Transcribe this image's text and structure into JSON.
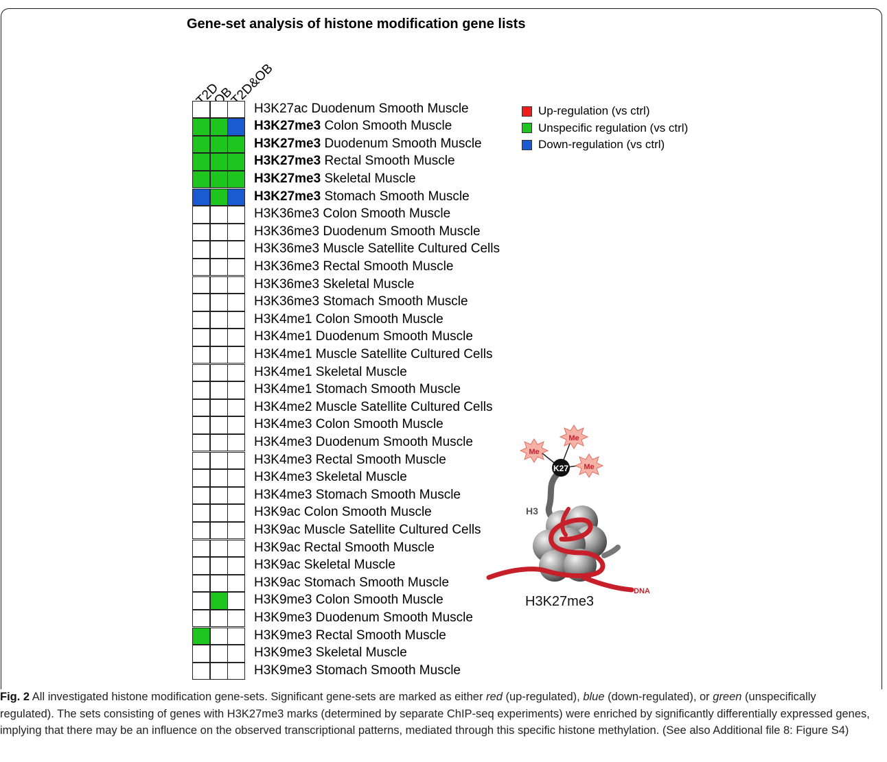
{
  "figure": {
    "title": "Gene-set analysis of histone modification gene lists",
    "columns": [
      "T2D",
      "OB",
      "T2D&OB"
    ],
    "colors": {
      "up": "#ee1c1c",
      "unspecific": "#1fc51f",
      "down": "#1a5bd0",
      "none": "#ffffff"
    },
    "legend": [
      {
        "key": "up",
        "label": "Up-regulation (vs ctrl)"
      },
      {
        "key": "unspecific",
        "label": "Unspecific regulation (vs ctrl)"
      },
      {
        "key": "down",
        "label": "Down-regulation (vs ctrl)"
      }
    ],
    "rows": [
      {
        "mark": "H3K27ac",
        "tissue": "Duodenum Smooth Muscle",
        "bold": false,
        "cells": [
          "none",
          "none",
          "none"
        ]
      },
      {
        "mark": "H3K27me3",
        "tissue": "Colon Smooth Muscle",
        "bold": true,
        "cells": [
          "unspecific",
          "unspecific",
          "down"
        ]
      },
      {
        "mark": "H3K27me3",
        "tissue": "Duodenum Smooth Muscle",
        "bold": true,
        "cells": [
          "unspecific",
          "unspecific",
          "unspecific"
        ]
      },
      {
        "mark": "H3K27me3",
        "tissue": "Rectal Smooth Muscle",
        "bold": true,
        "cells": [
          "unspecific",
          "unspecific",
          "unspecific"
        ]
      },
      {
        "mark": "H3K27me3",
        "tissue": "Skeletal Muscle",
        "bold": true,
        "cells": [
          "unspecific",
          "unspecific",
          "unspecific"
        ]
      },
      {
        "mark": "H3K27me3",
        "tissue": "Stomach Smooth Muscle",
        "bold": true,
        "cells": [
          "down",
          "unspecific",
          "down"
        ]
      },
      {
        "mark": "H3K36me3",
        "tissue": "Colon Smooth Muscle",
        "bold": false,
        "cells": [
          "none",
          "none",
          "none"
        ]
      },
      {
        "mark": "H3K36me3",
        "tissue": "Duodenum Smooth Muscle",
        "bold": false,
        "cells": [
          "none",
          "none",
          "none"
        ]
      },
      {
        "mark": "H3K36me3",
        "tissue": "Muscle Satellite Cultured Cells",
        "bold": false,
        "cells": [
          "none",
          "none",
          "none"
        ]
      },
      {
        "mark": "H3K36me3",
        "tissue": "Rectal Smooth Muscle",
        "bold": false,
        "cells": [
          "none",
          "none",
          "none"
        ]
      },
      {
        "mark": "H3K36me3",
        "tissue": "Skeletal Muscle",
        "bold": false,
        "cells": [
          "none",
          "none",
          "none"
        ]
      },
      {
        "mark": "H3K36me3",
        "tissue": "Stomach Smooth Muscle",
        "bold": false,
        "cells": [
          "none",
          "none",
          "none"
        ]
      },
      {
        "mark": "H3K4me1",
        "tissue": "Colon Smooth Muscle",
        "bold": false,
        "cells": [
          "none",
          "none",
          "none"
        ]
      },
      {
        "mark": "H3K4me1",
        "tissue": "Duodenum Smooth Muscle",
        "bold": false,
        "cells": [
          "none",
          "none",
          "none"
        ]
      },
      {
        "mark": "H3K4me1",
        "tissue": "Muscle Satellite Cultured Cells",
        "bold": false,
        "cells": [
          "none",
          "none",
          "none"
        ]
      },
      {
        "mark": "H3K4me1",
        "tissue": "Skeletal Muscle",
        "bold": false,
        "cells": [
          "none",
          "none",
          "none"
        ]
      },
      {
        "mark": "H3K4me1",
        "tissue": "Stomach Smooth Muscle",
        "bold": false,
        "cells": [
          "none",
          "none",
          "none"
        ]
      },
      {
        "mark": "H3K4me2",
        "tissue": "Muscle Satellite Cultured Cells",
        "bold": false,
        "cells": [
          "none",
          "none",
          "none"
        ]
      },
      {
        "mark": "H3K4me3",
        "tissue": "Colon Smooth Muscle",
        "bold": false,
        "cells": [
          "none",
          "none",
          "none"
        ]
      },
      {
        "mark": "H3K4me3",
        "tissue": "Duodenum Smooth Muscle",
        "bold": false,
        "cells": [
          "none",
          "none",
          "none"
        ]
      },
      {
        "mark": "H3K4me3",
        "tissue": "Rectal Smooth Muscle",
        "bold": false,
        "cells": [
          "none",
          "none",
          "none"
        ]
      },
      {
        "mark": "H3K4me3",
        "tissue": "Skeletal Muscle",
        "bold": false,
        "cells": [
          "none",
          "none",
          "none"
        ]
      },
      {
        "mark": "H3K4me3",
        "tissue": "Stomach Smooth Muscle",
        "bold": false,
        "cells": [
          "none",
          "none",
          "none"
        ]
      },
      {
        "mark": "H3K9ac",
        "tissue": "Colon Smooth Muscle",
        "bold": false,
        "cells": [
          "none",
          "none",
          "none"
        ]
      },
      {
        "mark": "H3K9ac",
        "tissue": "Muscle Satellite Cultured Cells",
        "bold": false,
        "cells": [
          "none",
          "none",
          "none"
        ]
      },
      {
        "mark": "H3K9ac",
        "tissue": "Rectal Smooth Muscle",
        "bold": false,
        "cells": [
          "none",
          "none",
          "none"
        ]
      },
      {
        "mark": "H3K9ac",
        "tissue": "Skeletal Muscle",
        "bold": false,
        "cells": [
          "none",
          "none",
          "none"
        ]
      },
      {
        "mark": "H3K9ac",
        "tissue": "Stomach Smooth Muscle",
        "bold": false,
        "cells": [
          "none",
          "none",
          "none"
        ]
      },
      {
        "mark": "H3K9me3",
        "tissue": "Colon Smooth Muscle",
        "bold": false,
        "cells": [
          "none",
          "unspecific",
          "none"
        ]
      },
      {
        "mark": "H3K9me3",
        "tissue": "Duodenum Smooth Muscle",
        "bold": false,
        "cells": [
          "none",
          "none",
          "none"
        ]
      },
      {
        "mark": "H3K9me3",
        "tissue": "Rectal Smooth Muscle",
        "bold": false,
        "cells": [
          "unspecific",
          "none",
          "none"
        ]
      },
      {
        "mark": "H3K9me3",
        "tissue": "Skeletal Muscle",
        "bold": false,
        "cells": [
          "none",
          "none",
          "none"
        ]
      },
      {
        "mark": "H3K9me3",
        "tissue": "Stomach Smooth Muscle",
        "bold": false,
        "cells": [
          "none",
          "none",
          "none"
        ]
      }
    ],
    "illustration": {
      "me_label": "Me",
      "k27_label": "K27",
      "h3_label": "H3",
      "dna_label": "DNA",
      "name": "H3K27me3"
    }
  },
  "caption": {
    "fig_label": "Fig. 2",
    "text_1": " All investigated histone modification gene-sets. Significant gene-sets are marked as either ",
    "red": "red",
    "text_2": " (up-regulated), ",
    "blue": "blue",
    "text_3": " (down-regulated), or ",
    "green": "green",
    "text_4": " (unspecifically regulated). The sets consisting of genes with H3K27me3 marks (determined by separate ChIP-seq experiments) were enriched by significantly differentially expressed genes, implying that there may be an influence on the observed transcriptional patterns, mediated through this specific histone methylation. (See also Additional file 8: Figure S4)"
  }
}
